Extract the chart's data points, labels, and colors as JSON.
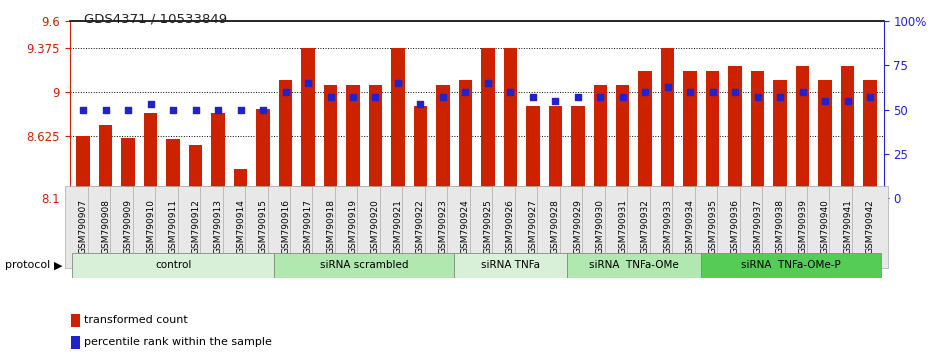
{
  "title": "GDS4371 / 10533849",
  "samples": [
    "GSM790907",
    "GSM790908",
    "GSM790909",
    "GSM790910",
    "GSM790911",
    "GSM790912",
    "GSM790913",
    "GSM790914",
    "GSM790915",
    "GSM790916",
    "GSM790917",
    "GSM790918",
    "GSM790919",
    "GSM790920",
    "GSM790921",
    "GSM790922",
    "GSM790923",
    "GSM790924",
    "GSM790925",
    "GSM790926",
    "GSM790927",
    "GSM790928",
    "GSM790929",
    "GSM790930",
    "GSM790931",
    "GSM790932",
    "GSM790933",
    "GSM790934",
    "GSM790935",
    "GSM790936",
    "GSM790937",
    "GSM790938",
    "GSM790939",
    "GSM790940",
    "GSM790941",
    "GSM790942"
  ],
  "bar_heights": [
    8.625,
    8.72,
    8.61,
    8.82,
    8.6,
    8.55,
    8.82,
    8.35,
    8.86,
    9.1,
    9.37,
    9.06,
    9.06,
    9.06,
    9.37,
    8.88,
    9.06,
    9.1,
    9.37,
    9.37,
    8.88,
    8.88,
    8.88,
    9.06,
    9.06,
    9.18,
    9.37,
    9.18,
    9.18,
    9.22,
    9.18,
    9.1,
    9.22,
    9.1,
    9.22,
    9.1
  ],
  "percentiles": [
    50,
    50,
    50,
    53,
    50,
    50,
    50,
    50,
    50,
    60,
    65,
    57,
    57,
    57,
    65,
    53,
    57,
    60,
    65,
    60,
    57,
    55,
    57,
    57,
    57,
    60,
    63,
    60,
    60,
    60,
    57,
    57,
    60,
    55,
    55,
    57
  ],
  "groups": [
    {
      "label": "control",
      "start": 0,
      "end": 9,
      "color": "#d8f0d8"
    },
    {
      "label": "siRNA scrambled",
      "start": 9,
      "end": 17,
      "color": "#b0e8b0"
    },
    {
      "label": "siRNA TNFa",
      "start": 17,
      "end": 22,
      "color": "#d8f0d8"
    },
    {
      "label": "siRNA  TNFa-OMe",
      "start": 22,
      "end": 28,
      "color": "#b0e8b0"
    },
    {
      "label": "siRNA  TNFa-OMe-P",
      "start": 28,
      "end": 36,
      "color": "#55cc55"
    }
  ],
  "y_min": 8.1,
  "y_max": 9.6,
  "y_ticks_left": [
    8.1,
    8.625,
    9.0,
    9.375,
    9.6
  ],
  "y_tick_labels_left": [
    "8.1",
    "8.625",
    "9",
    "9.375",
    "9.6"
  ],
  "y_ticks_right": [
    0,
    25,
    50,
    75,
    100
  ],
  "y_tick_labels_right": [
    "0",
    "25",
    "50",
    "75",
    "100%"
  ],
  "bar_color": "#cc2200",
  "dot_color": "#2222cc",
  "left_axis_color": "#cc2200",
  "right_axis_color": "#2222cc"
}
